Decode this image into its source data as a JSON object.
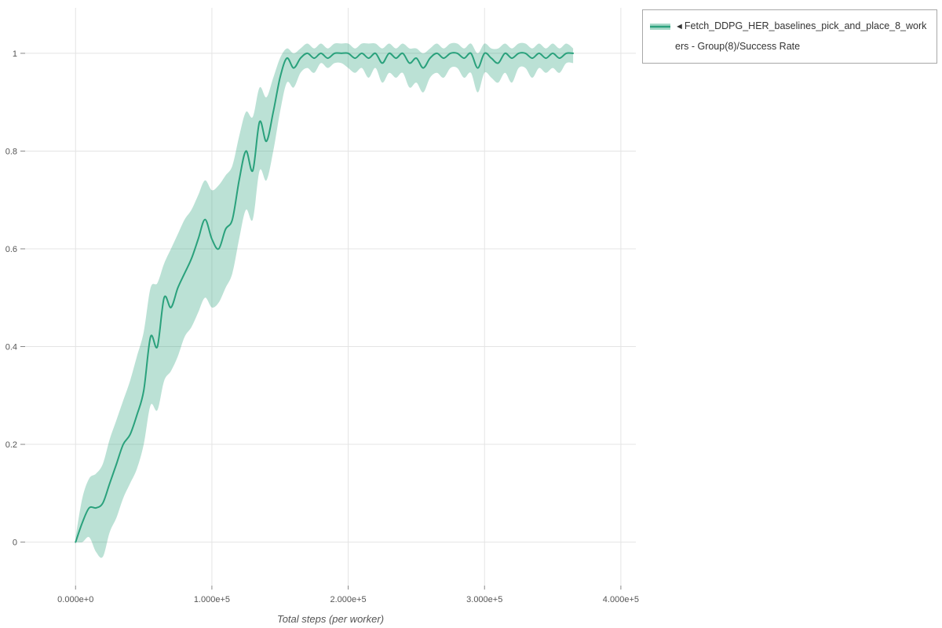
{
  "chart_data": {
    "type": "line",
    "title": "",
    "xlabel": "Total steps (per worker)",
    "ylabel": "",
    "grid": true,
    "legend_position": "top-right",
    "x_tick_values": [
      0,
      100000,
      200000,
      300000,
      400000
    ],
    "x_tick_labels": [
      "0.000e+0",
      "1.000e+5",
      "2.000e+5",
      "3.000e+5",
      "4.000e+5"
    ],
    "y_tick_values": [
      0,
      0.2,
      0.4,
      0.6,
      0.8,
      1
    ],
    "y_tick_labels": [
      "0",
      "0.2",
      "0.4",
      "0.6",
      "0.8",
      "1"
    ],
    "xlim": [
      -37000,
      411000
    ],
    "ylim": [
      -0.089,
      1.093
    ],
    "series": [
      {
        "name": "Fetch_DDPG_HER_baselines_pick_and_place_8_workers - Group(8)/Success Rate",
        "marker": "◄",
        "line_color": "#2aa17c",
        "band_color": "#2aa17c",
        "band_opacity": 0.32,
        "x": [
          0,
          5000,
          10000,
          15000,
          20000,
          25000,
          30000,
          35000,
          40000,
          45000,
          50000,
          55000,
          60000,
          65000,
          70000,
          75000,
          80000,
          85000,
          90000,
          95000,
          100000,
          105000,
          110000,
          115000,
          120000,
          125000,
          130000,
          135000,
          140000,
          145000,
          150000,
          155000,
          160000,
          165000,
          170000,
          175000,
          180000,
          185000,
          190000,
          195000,
          200000,
          205000,
          210000,
          215000,
          220000,
          225000,
          230000,
          235000,
          240000,
          245000,
          250000,
          255000,
          260000,
          265000,
          270000,
          275000,
          280000,
          285000,
          290000,
          295000,
          300000,
          305000,
          310000,
          315000,
          320000,
          325000,
          330000,
          335000,
          340000,
          345000,
          350000,
          355000,
          360000,
          365000
        ],
        "y_mean": [
          0.0,
          0.04,
          0.07,
          0.07,
          0.08,
          0.12,
          0.16,
          0.2,
          0.22,
          0.26,
          0.31,
          0.42,
          0.4,
          0.5,
          0.48,
          0.52,
          0.55,
          0.58,
          0.62,
          0.66,
          0.62,
          0.6,
          0.64,
          0.66,
          0.74,
          0.8,
          0.76,
          0.86,
          0.82,
          0.88,
          0.95,
          0.99,
          0.97,
          0.99,
          1.0,
          0.99,
          1.0,
          0.99,
          1.0,
          1.0,
          1.0,
          0.99,
          1.0,
          0.99,
          1.0,
          0.98,
          1.0,
          0.99,
          1.0,
          0.98,
          0.99,
          0.97,
          0.99,
          1.0,
          0.99,
          1.0,
          1.0,
          0.99,
          1.0,
          0.97,
          1.0,
          0.99,
          0.98,
          1.0,
          0.99,
          1.0,
          1.0,
          0.99,
          1.0,
          0.99,
          1.0,
          0.99,
          1.0,
          1.0
        ],
        "y_low": [
          0.0,
          0.0,
          0.01,
          -0.02,
          -0.03,
          0.02,
          0.05,
          0.09,
          0.12,
          0.15,
          0.2,
          0.28,
          0.27,
          0.33,
          0.35,
          0.38,
          0.42,
          0.44,
          0.47,
          0.5,
          0.48,
          0.49,
          0.52,
          0.55,
          0.62,
          0.68,
          0.66,
          0.76,
          0.74,
          0.8,
          0.88,
          0.94,
          0.93,
          0.96,
          0.97,
          0.96,
          0.98,
          0.97,
          0.98,
          0.98,
          0.97,
          0.96,
          0.97,
          0.95,
          0.97,
          0.94,
          0.96,
          0.95,
          0.96,
          0.93,
          0.94,
          0.92,
          0.95,
          0.96,
          0.95,
          0.97,
          0.97,
          0.95,
          0.96,
          0.92,
          0.96,
          0.95,
          0.94,
          0.96,
          0.94,
          0.97,
          0.97,
          0.95,
          0.97,
          0.96,
          0.97,
          0.96,
          0.98,
          0.98
        ],
        "y_high": [
          0.01,
          0.09,
          0.13,
          0.14,
          0.16,
          0.21,
          0.25,
          0.29,
          0.33,
          0.38,
          0.43,
          0.52,
          0.53,
          0.57,
          0.6,
          0.63,
          0.66,
          0.68,
          0.71,
          0.74,
          0.72,
          0.73,
          0.75,
          0.77,
          0.83,
          0.88,
          0.87,
          0.93,
          0.91,
          0.95,
          0.99,
          1.01,
          1.0,
          1.01,
          1.02,
          1.01,
          1.02,
          1.01,
          1.02,
          1.02,
          1.02,
          1.01,
          1.02,
          1.02,
          1.02,
          1.01,
          1.02,
          1.01,
          1.02,
          1.01,
          1.01,
          1.0,
          1.01,
          1.02,
          1.01,
          1.02,
          1.02,
          1.01,
          1.02,
          1.0,
          1.02,
          1.01,
          1.01,
          1.02,
          1.01,
          1.02,
          1.02,
          1.01,
          1.02,
          1.01,
          1.02,
          1.01,
          1.02,
          1.01
        ]
      }
    ]
  }
}
